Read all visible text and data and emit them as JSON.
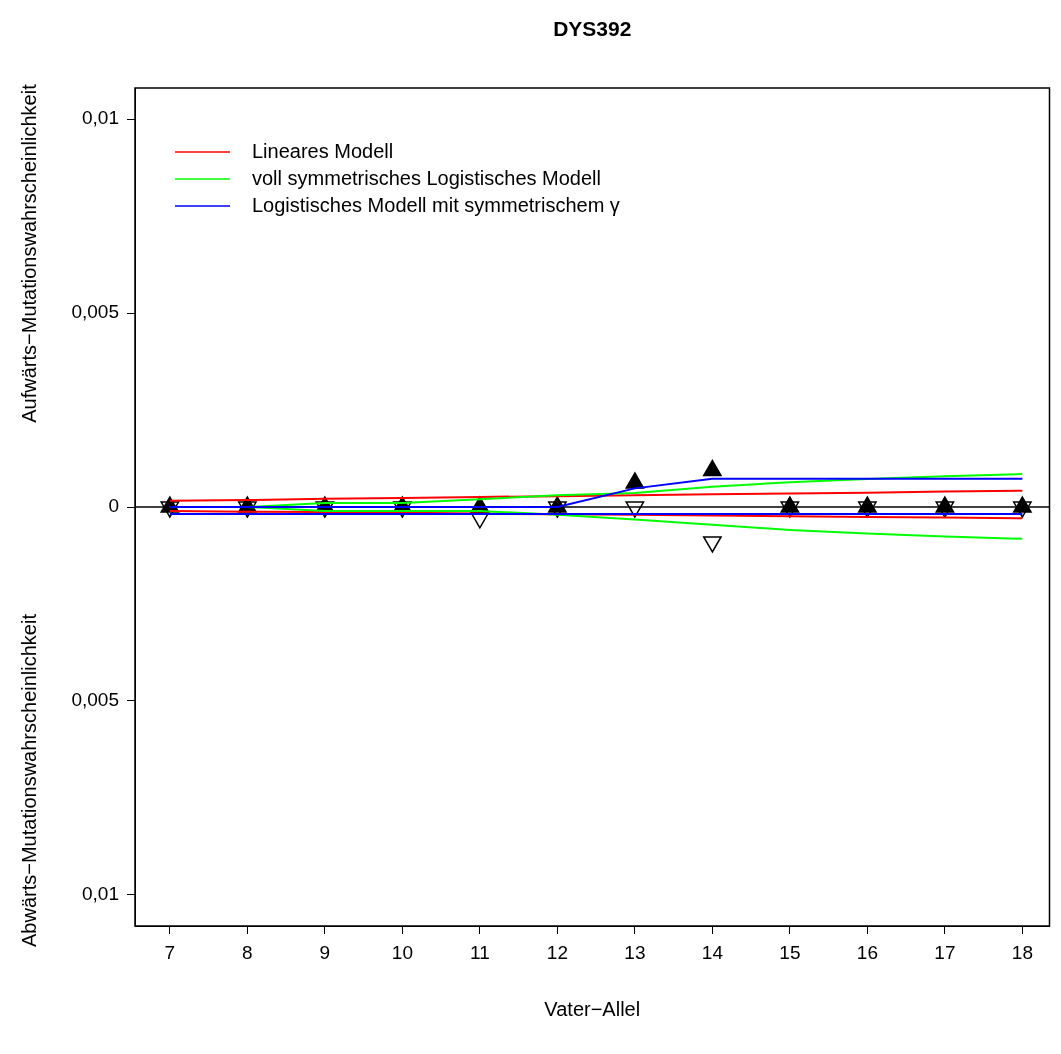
{
  "chart_data": {
    "type": "line",
    "title": "DYS392",
    "xlabel": "Vater−Allel",
    "ylabel": "Aufwärts−Mutationswahrscheinlichkeit",
    "annotations": [
      "Abwärts−Mutationswahrscheinlichkeit"
    ],
    "x": [
      7,
      8,
      9,
      10,
      11,
      12,
      13,
      14,
      15,
      16,
      17,
      18
    ],
    "xlim": [
      6.55,
      18.35
    ],
    "xticks": [
      7,
      8,
      9,
      10,
      11,
      12,
      13,
      14,
      15,
      16,
      17,
      18
    ],
    "ylim": [
      -0.0108,
      0.0108
    ],
    "yticks": [
      {
        "value": -0.01,
        "label": "0,01"
      },
      {
        "value": -0.005,
        "label": "0,005"
      },
      0,
      {
        "value": 0.005,
        "label": "0,005"
      },
      {
        "value": 0.01,
        "label": "0,01"
      }
    ],
    "grid": false,
    "legend": "top left",
    "ref_lines": [
      {
        "axis": "y",
        "value": 0,
        "color": "#000000"
      }
    ],
    "series": [
      {
        "type": "scatter",
        "marker": "triangle",
        "color": "#000000",
        "values": [
          0,
          0,
          0,
          0,
          0,
          0,
          0.00062,
          0.00094,
          0,
          0,
          0,
          0
        ]
      },
      {
        "type": "scatter",
        "marker": "triangle",
        "color": "#000000",
        "values": [
          0,
          0,
          0,
          0,
          -0.00028,
          0,
          0,
          -0.0009,
          0,
          0,
          0,
          0
        ]
      },
      {
        "name": "Lineares Modell",
        "color": "#ff0000",
        "marker": "none",
        "values": [
          0.00016,
          0.00018,
          0.00021,
          0.00023,
          0.00026,
          0.00028,
          0.0003,
          0.00033,
          0.00035,
          0.00037,
          0.0004,
          0.00042
        ]
      },
      {
        "color": "#ff0000",
        "marker": "none",
        "values": [
          -0.0001,
          -0.00012,
          -0.00013,
          -0.00015,
          -0.00017,
          -0.00019,
          -0.0002,
          -0.00022,
          -0.00024,
          -0.00026,
          -0.00027,
          -0.00029
        ]
      },
      {
        "name": "voll symmetrisches Logistisches Modell",
        "color": "#00ff00",
        "marker": "none",
        "values": [
          0,
          0,
          0.0001,
          0.0001,
          0.0002,
          0.0003,
          0.00036,
          0.00052,
          0.00064,
          0.00072,
          0.00079,
          0.00085
        ]
      },
      {
        "color": "#00ff00",
        "marker": "none",
        "values": [
          0,
          0,
          -0.0001,
          -0.0001,
          -0.0001,
          -0.0002,
          -0.00032,
          -0.00046,
          -0.00059,
          -0.00068,
          -0.00076,
          -0.00082
        ]
      },
      {
        "name": "Logistisches Modell mit symmetrischem γ",
        "color": "#0000ff",
        "marker": "none",
        "values": [
          0,
          0,
          0,
          0,
          0,
          0,
          0.00048,
          0.00073,
          0.00073,
          0.00073,
          0.00073,
          0.00073
        ]
      },
      {
        "color": "#0000ff",
        "marker": "none",
        "values": [
          -0.00018,
          -0.00018,
          -0.00018,
          -0.00018,
          -0.00018,
          -0.00018,
          -0.00018,
          -0.00018,
          -0.00018,
          -0.00018,
          -0.00018,
          -0.00018
        ]
      }
    ]
  }
}
